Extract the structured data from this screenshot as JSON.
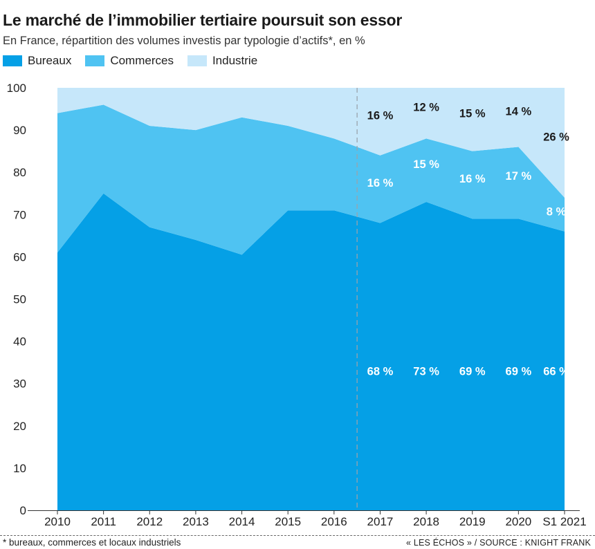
{
  "title": "Le marché de l’immobilier tertiaire poursuit son essor",
  "subtitle": "En France, répartition des volumes investis par typologie d’actifs*, en %",
  "colors": {
    "bureaux": "#05a0e6",
    "commerces": "#4fc3f2",
    "industrie": "#c6e7fa"
  },
  "footnote": "* bureaux, commerces et locaux industriels",
  "source": "« LES ÉCHOS » / SOURCE : KNIGHT FRANK",
  "chart_data": {
    "type": "area",
    "stacked": true,
    "x": [
      "2010",
      "2011",
      "2012",
      "2013",
      "2014",
      "2015",
      "2016",
      "2017",
      "2018",
      "2019",
      "2020",
      "S1 2021"
    ],
    "ylim": [
      0,
      100
    ],
    "yticks": [
      0,
      10,
      20,
      30,
      40,
      50,
      60,
      70,
      80,
      90,
      100
    ],
    "grid": false,
    "legend_position": "top-left",
    "divider_after": "2016",
    "series": [
      {
        "name": "Bureaux",
        "values": [
          61,
          75,
          67,
          64,
          60.5,
          71,
          71,
          68,
          73,
          69,
          69,
          66
        ]
      },
      {
        "name": "Commerces",
        "values": [
          33,
          21,
          24,
          26,
          32.5,
          20,
          17,
          16,
          15,
          16,
          17,
          8
        ]
      },
      {
        "name": "Industrie",
        "values": [
          6,
          4,
          9,
          10,
          7,
          9,
          12,
          16,
          12,
          15,
          14,
          26
        ]
      }
    ],
    "data_labels": {
      "Bureaux": [
        {
          "x": "2017",
          "text": "68 %"
        },
        {
          "x": "2018",
          "text": "73 %"
        },
        {
          "x": "2019",
          "text": "69 %"
        },
        {
          "x": "2020",
          "text": "69 %"
        },
        {
          "x": "S1 2021",
          "text": "66 %"
        }
      ],
      "Commerces": [
        {
          "x": "2017",
          "text": "16 %"
        },
        {
          "x": "2018",
          "text": "15 %"
        },
        {
          "x": "2019",
          "text": "16 %"
        },
        {
          "x": "2020",
          "text": "17 %"
        },
        {
          "x": "S1 2021",
          "text": "8 %"
        }
      ],
      "Industrie": [
        {
          "x": "2017",
          "text": "16 %"
        },
        {
          "x": "2018",
          "text": "12 %"
        },
        {
          "x": "2019",
          "text": "15 %"
        },
        {
          "x": "2020",
          "text": "14 %"
        },
        {
          "x": "S1 2021",
          "text": "26 %"
        }
      ]
    }
  }
}
